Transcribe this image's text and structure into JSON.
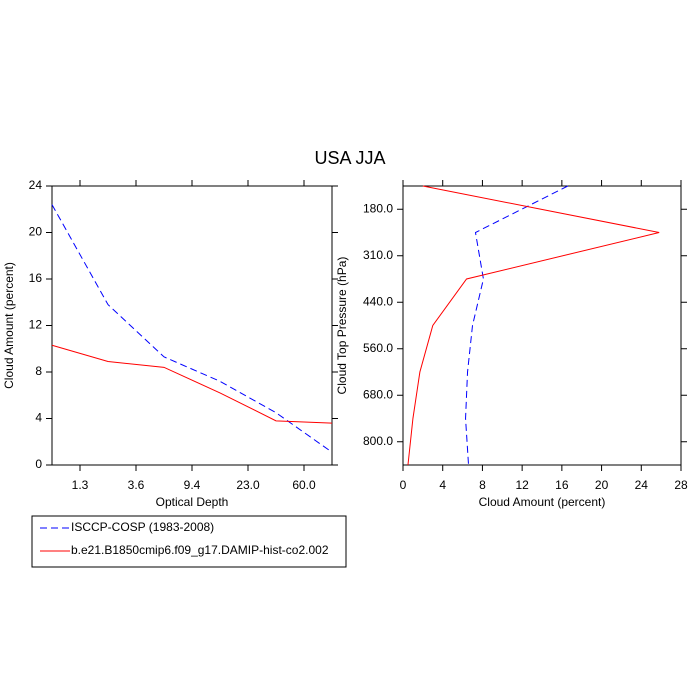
{
  "title": "USA JJA",
  "chart_data": [
    {
      "type": "line",
      "orientation": "vertical",
      "xlabel": "Optical Depth",
      "ylabel": "Cloud Amount (percent)",
      "x": [
        0,
        1,
        2,
        3,
        4,
        5
      ],
      "xlim": [
        0,
        5
      ],
      "xticks": [
        {
          "value": 0.5,
          "label": "1.3"
        },
        {
          "value": 1.5,
          "label": "3.6"
        },
        {
          "value": 2.5,
          "label": "9.4"
        },
        {
          "value": 3.5,
          "label": "23.0"
        },
        {
          "value": 4.5,
          "label": "60.0"
        }
      ],
      "ylim": [
        0,
        24
      ],
      "yticks": [
        0,
        4,
        8,
        12,
        16,
        20,
        24
      ],
      "series": [
        {
          "name": "ISCCP-COSP (1983-2008)",
          "color": "#0000ff",
          "dashed": true,
          "values": [
            22.4,
            13.8,
            9.3,
            7.2,
            4.5,
            1.1
          ]
        },
        {
          "name": "b.e21.B1850cmip6.f09_g17.DAMIP-hist-co2.002",
          "color": "#ff0000",
          "dashed": false,
          "values": [
            10.3,
            8.9,
            8.4,
            6.2,
            3.8,
            3.6
          ]
        }
      ]
    },
    {
      "type": "line",
      "orientation": "horizontal",
      "xlabel": "Cloud Amount (percent)",
      "ylabel": "Cloud Top Pressure (hPa)",
      "y": [
        0,
        1,
        2,
        3,
        4,
        5,
        6
      ],
      "ylim": [
        6,
        0
      ],
      "yticks": [
        {
          "value": 0.5,
          "label": "180.0"
        },
        {
          "value": 1.5,
          "label": "310.0"
        },
        {
          "value": 2.5,
          "label": "440.0"
        },
        {
          "value": 3.5,
          "label": "560.0"
        },
        {
          "value": 4.5,
          "label": "680.0"
        },
        {
          "value": 5.5,
          "label": "800.0"
        }
      ],
      "xlim": [
        0,
        28
      ],
      "xticks": [
        0,
        4,
        8,
        12,
        16,
        20,
        24,
        28
      ],
      "series": [
        {
          "color": "#0000ff",
          "dashed": true,
          "values": [
            16.6,
            7.3,
            8.1,
            7.0,
            6.5,
            6.3,
            6.6
          ]
        },
        {
          "color": "#ff0000",
          "dashed": false,
          "values": [
            2.0,
            25.8,
            6.4,
            3.0,
            1.7,
            1.0,
            0.5
          ]
        }
      ]
    }
  ]
}
